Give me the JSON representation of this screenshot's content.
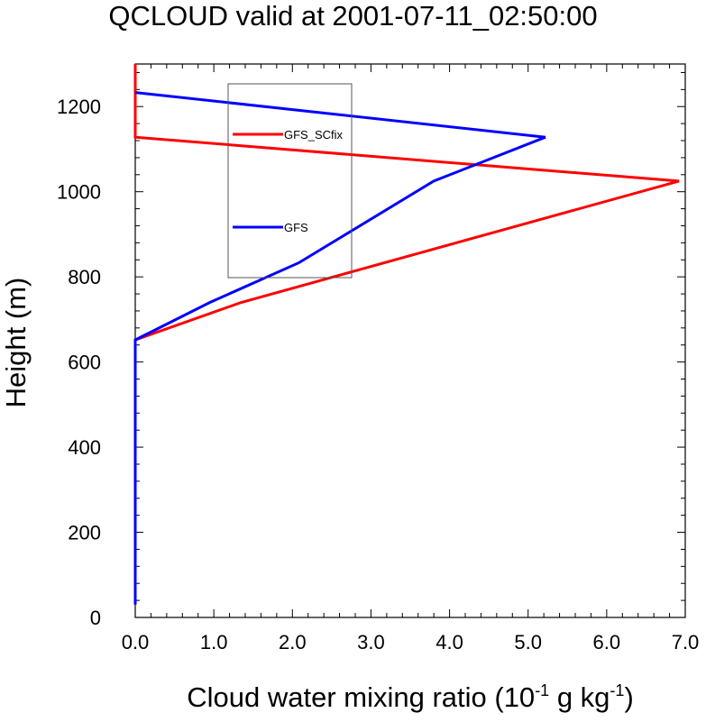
{
  "chart_data": {
    "type": "line",
    "title": "QCLOUD valid at 2001-07-11_02:50:00",
    "xlabel": {
      "prefix": "Cloud water mixing ratio (10",
      "exp1": "-1",
      "mid": " g kg",
      "exp2": "-1",
      "suffix": ")"
    },
    "ylabel": "Height (m)",
    "xlim": [
      0.0,
      7.0
    ],
    "ylim": [
      0,
      1300
    ],
    "xticks": [
      0.0,
      1.0,
      2.0,
      3.0,
      4.0,
      5.0,
      6.0,
      7.0
    ],
    "xtick_labels": [
      "0.0",
      "1.0",
      "2.0",
      "3.0",
      "4.0",
      "5.0",
      "6.0",
      "7.0"
    ],
    "yticks": [
      0,
      200,
      400,
      600,
      800,
      1000,
      1200
    ],
    "ytick_labels": [
      "0",
      "200",
      "400",
      "600",
      "800",
      "1000",
      "1200"
    ],
    "grid": false,
    "legend_position": "upper-left-inside",
    "series": [
      {
        "name": "GFS_SCfix",
        "color": "#ff0000",
        "x": [
          0.0,
          0.0,
          0.0,
          1.35,
          6.92,
          0.0,
          0.0
        ],
        "y": [
          30,
          600,
          652,
          740,
          1025,
          1128,
          1300
        ]
      },
      {
        "name": "GFS",
        "color": "#0000ff",
        "x": [
          0.0,
          0.0,
          0.95,
          2.08,
          3.8,
          5.22,
          0.0
        ],
        "y": [
          30,
          652,
          740,
          833,
          1025,
          1128,
          1233
        ]
      }
    ]
  }
}
